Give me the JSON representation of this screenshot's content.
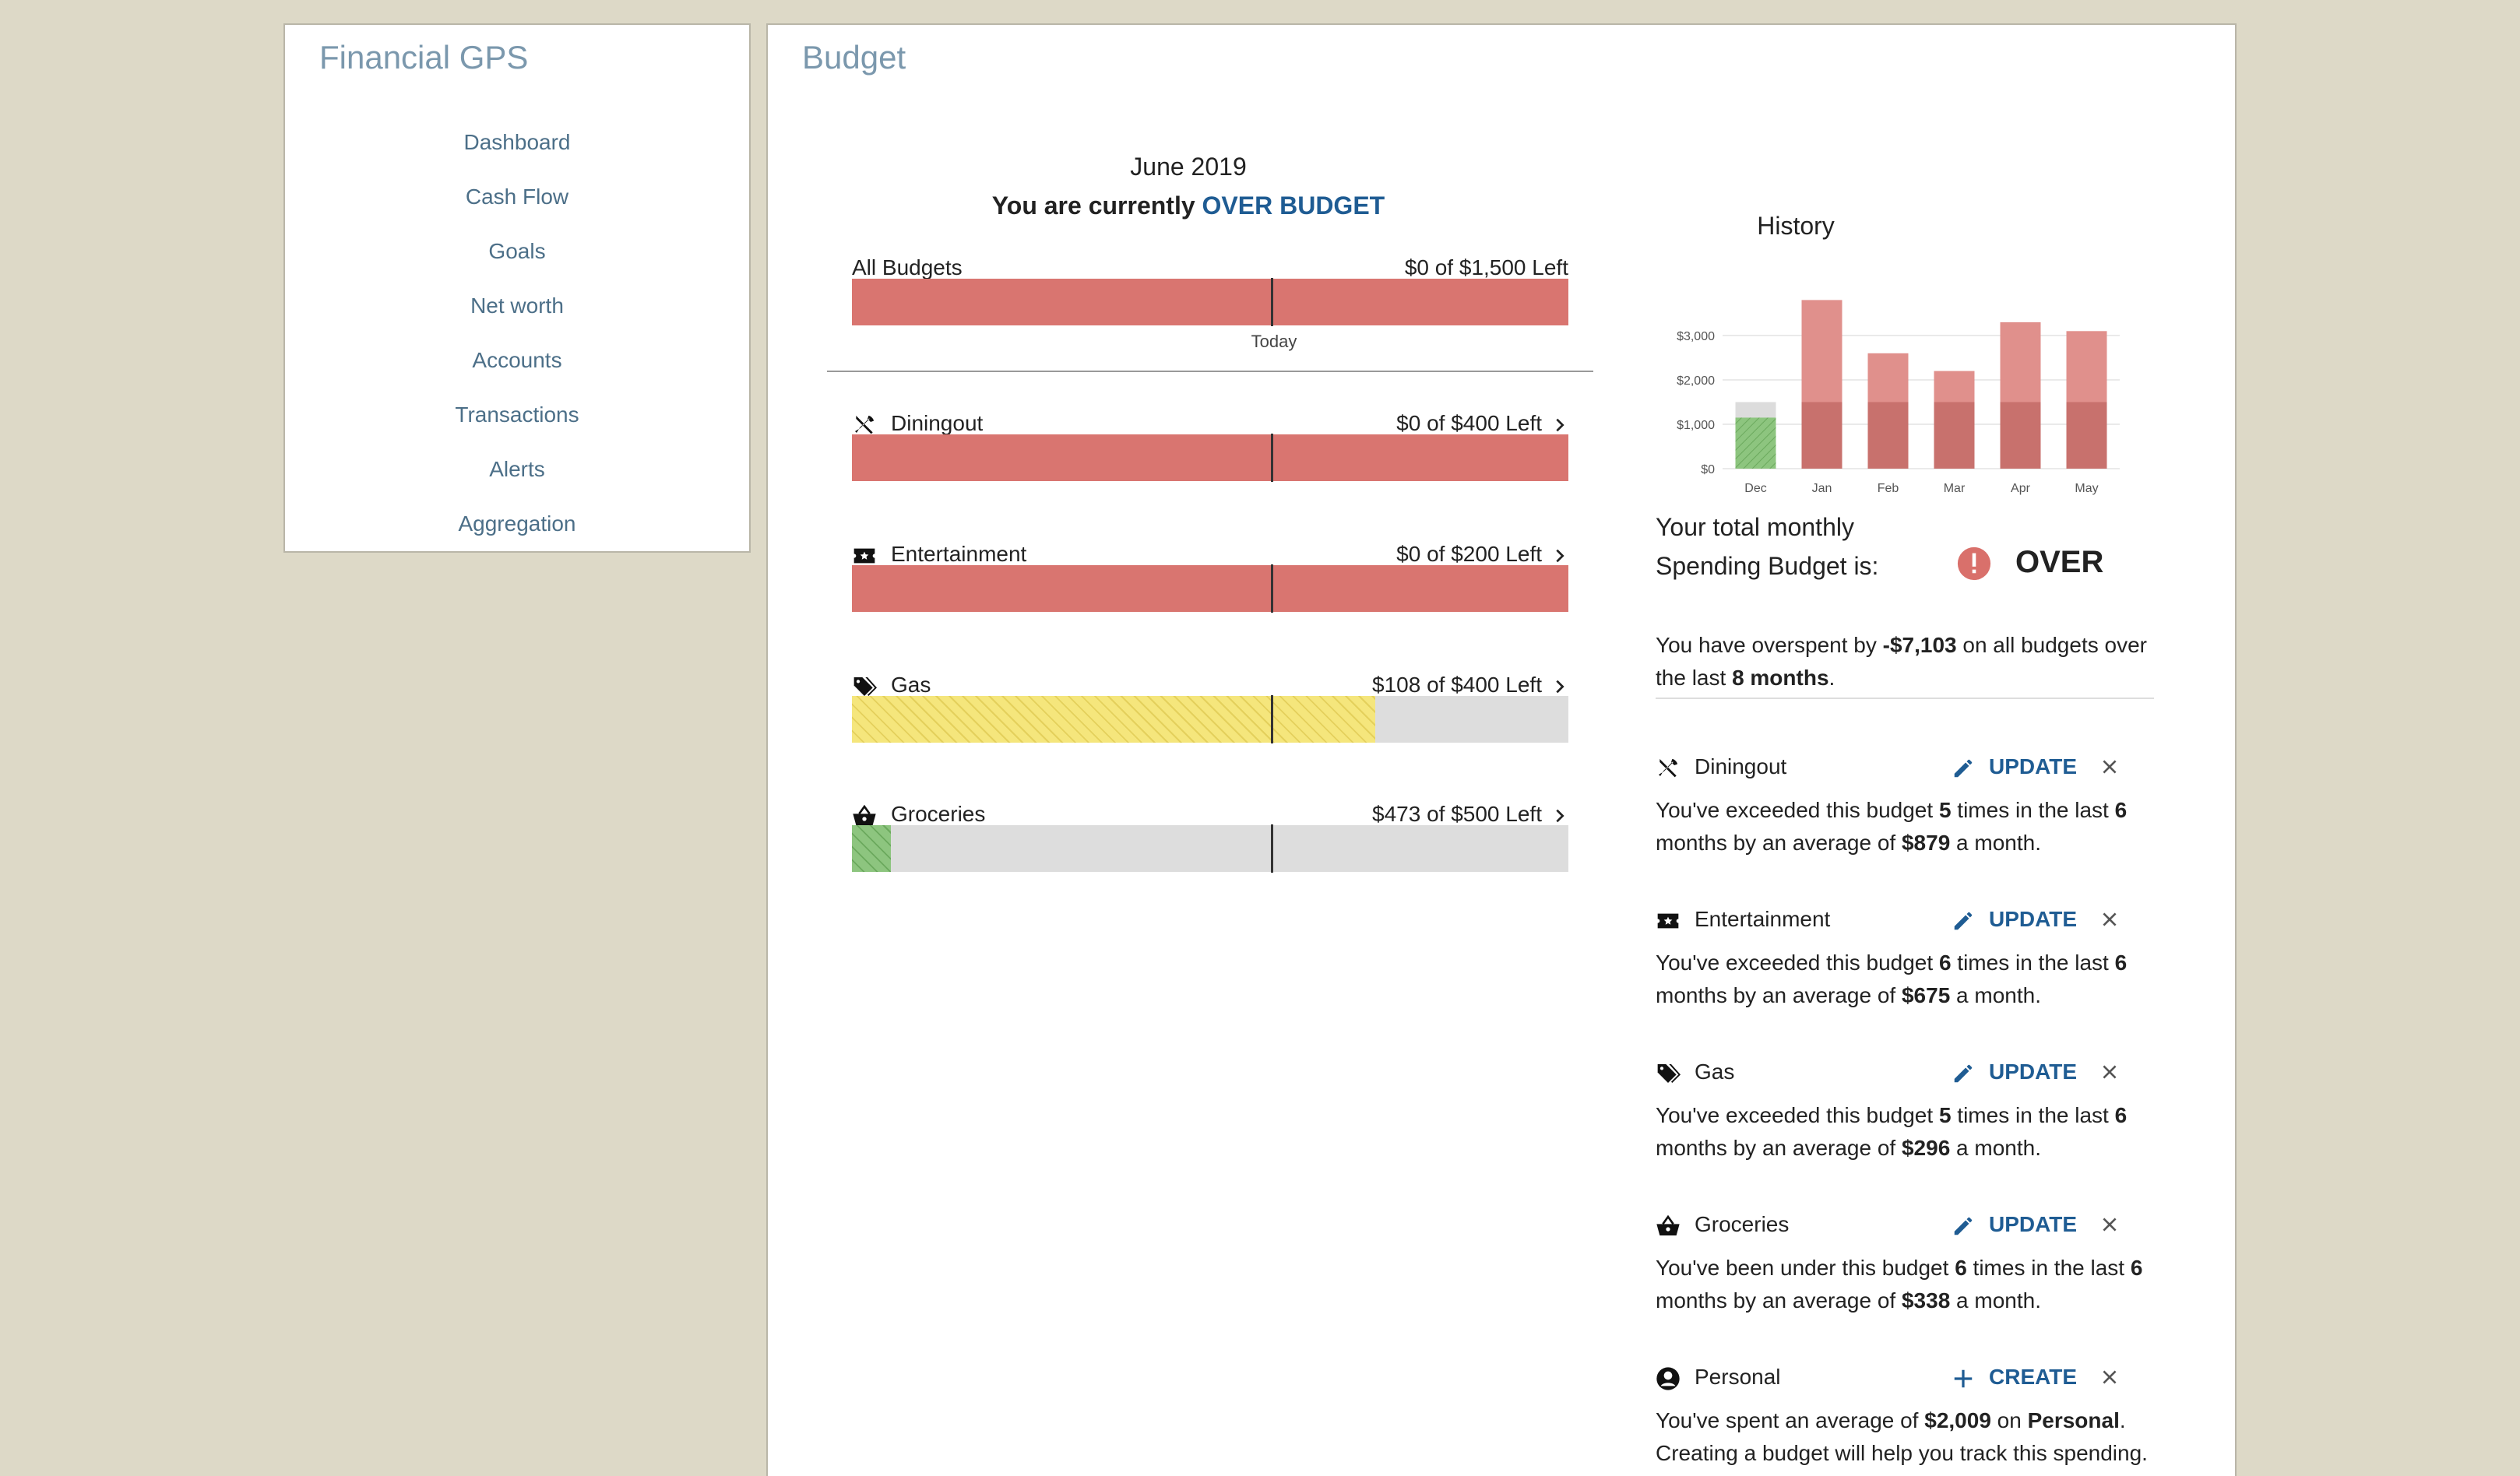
{
  "sidebar": {
    "brand": "Financial GPS",
    "nav": [
      "Dashboard",
      "Cash Flow",
      "Goals",
      "Net worth",
      "Accounts",
      "Transactions",
      "Alerts",
      "Aggregation"
    ]
  },
  "main": {
    "title": "Budget",
    "month": "June 2019",
    "status_prefix": "You are currently ",
    "status_value": "OVER BUDGET",
    "all_budgets": {
      "label": "All Budgets",
      "remaining": "$0 of $1,500 Left",
      "fill_fraction": 1.0,
      "fill_color": "red"
    },
    "today_label": "Today",
    "today_fraction": 0.585,
    "categories": [
      {
        "name": "Diningout",
        "icon": "fork-knife-icon",
        "remaining": "$0 of $400 Left",
        "fill_fraction": 1.0,
        "fill_color": "red"
      },
      {
        "name": "Entertainment",
        "icon": "ticket-icon",
        "remaining": "$0 of $200 Left",
        "fill_fraction": 1.0,
        "fill_color": "red"
      },
      {
        "name": "Gas",
        "icon": "tags-icon",
        "remaining": "$108 of $400 Left",
        "fill_fraction": 0.73,
        "fill_color": "yellow"
      },
      {
        "name": "Groceries",
        "icon": "basket-icon",
        "remaining": "$473 of $500 Left",
        "fill_fraction": 0.054,
        "fill_color": "green"
      }
    ]
  },
  "history": {
    "title": "History",
    "chart_data": {
      "type": "bar",
      "categories": [
        "Dec",
        "Jan",
        "Feb",
        "Mar",
        "Apr",
        "May"
      ],
      "series": [
        {
          "values": [
            1500,
            1500,
            1500,
            1500,
            1500,
            1500
          ]
        },
        {
          "values": [
            1150,
            3800,
            2600,
            2200,
            3300,
            3100
          ]
        }
      ],
      "yticks": [
        "$0",
        "$1,000",
        "$2,000",
        "$3,000"
      ],
      "ylim": [
        0,
        4000
      ]
    },
    "total_text_line1": "Your total monthly",
    "total_text_line2": "Spending Budget is:",
    "total_status": "OVER",
    "overspent_1": "You have overspent by ",
    "overspent_amount": "-$7,103",
    "overspent_2": " on all budgets over the last ",
    "overspent_period": "8 months",
    "overspent_3": ".",
    "items": [
      {
        "name": "Diningout",
        "icon": "fork-knife-icon",
        "action": "UPDATE",
        "t1": "You've exceeded this budget ",
        "n1": "5",
        "t2": " times in the last ",
        "n2": "6",
        "t3": " months by an average of ",
        "n3": "$879",
        "t4": " a month."
      },
      {
        "name": "Entertainment",
        "icon": "ticket-icon",
        "action": "UPDATE",
        "t1": "You've exceeded this budget ",
        "n1": "6",
        "t2": " times in the last ",
        "n2": "6",
        "t3": " months by an average of ",
        "n3": "$675",
        "t4": " a month."
      },
      {
        "name": "Gas",
        "icon": "tags-icon",
        "action": "UPDATE",
        "t1": "You've exceeded this budget ",
        "n1": "5",
        "t2": " times in the last ",
        "n2": "6",
        "t3": " months by an average of ",
        "n3": "$296",
        "t4": " a month."
      },
      {
        "name": "Groceries",
        "icon": "basket-icon",
        "action": "UPDATE",
        "t1": "You've been under this budget ",
        "n1": "6",
        "t2": " times in the last ",
        "n2": "6",
        "t3": " months by an average of ",
        "n3": "$338",
        "t4": " a month."
      },
      {
        "name": "Personal",
        "icon": "user-circle-icon",
        "action": "CREATE",
        "t1": "You've spent an average of ",
        "n1": "$2,009",
        "t2": " on ",
        "n2": "Personal",
        "t3": ". Creating a budget will help you track this spending.",
        "n3": "",
        "t4": ""
      }
    ]
  }
}
